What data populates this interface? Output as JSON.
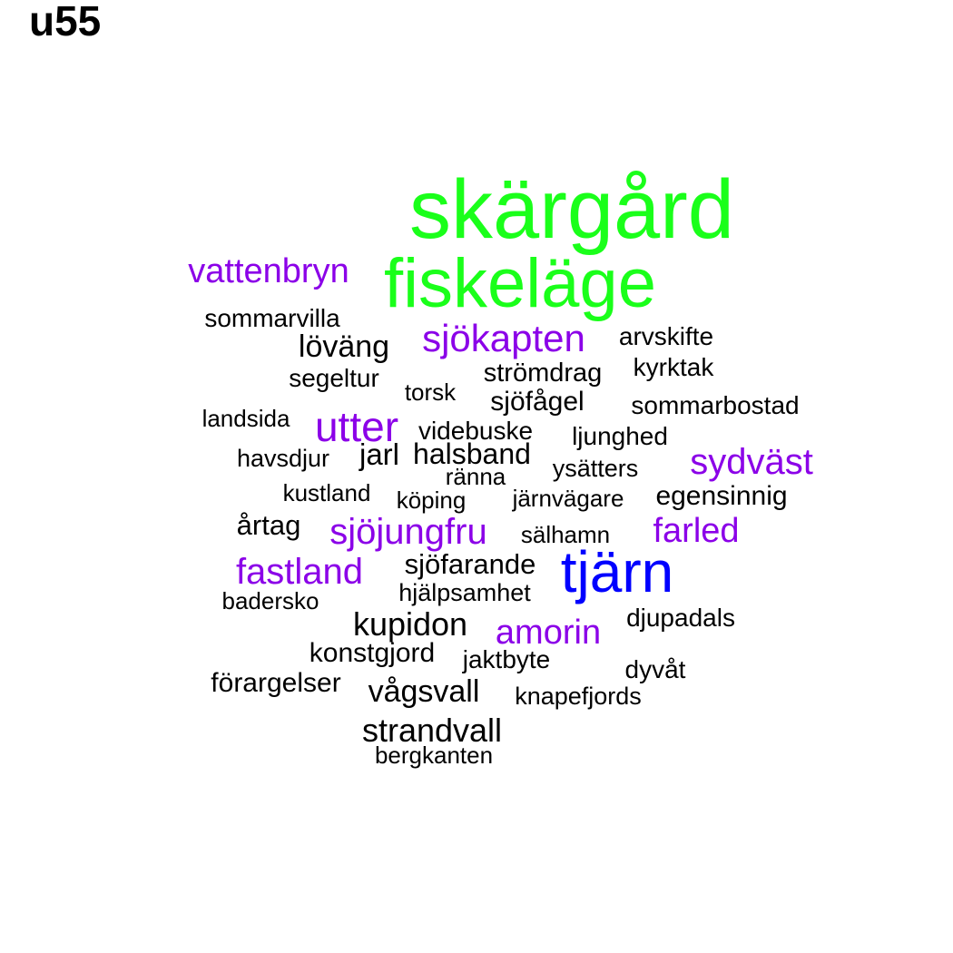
{
  "title": "u55",
  "colors": {
    "green": "#1AFF1A",
    "blue": "#0000FF",
    "purple": "#8B00E8",
    "black": "#000000"
  },
  "words": [
    {
      "text": "skärgård",
      "color": "green"
    },
    {
      "text": "fiskeläge",
      "color": "green"
    },
    {
      "text": "tjärn",
      "color": "blue"
    },
    {
      "text": "vattenbryn",
      "color": "purple"
    },
    {
      "text": "sjökapten",
      "color": "purple"
    },
    {
      "text": "utter",
      "color": "purple"
    },
    {
      "text": "sydväst",
      "color": "purple"
    },
    {
      "text": "sjöjungfru",
      "color": "purple"
    },
    {
      "text": "farled",
      "color": "purple"
    },
    {
      "text": "fastland",
      "color": "purple"
    },
    {
      "text": "amorin",
      "color": "purple"
    },
    {
      "text": "sommarvilla",
      "color": "black"
    },
    {
      "text": "löväng",
      "color": "black"
    },
    {
      "text": "arvskifte",
      "color": "black"
    },
    {
      "text": "strömdrag",
      "color": "black"
    },
    {
      "text": "kyrktak",
      "color": "black"
    },
    {
      "text": "segeltur",
      "color": "black"
    },
    {
      "text": "torsk",
      "color": "black"
    },
    {
      "text": "sjöfågel",
      "color": "black"
    },
    {
      "text": "sommarbostad",
      "color": "black"
    },
    {
      "text": "landsida",
      "color": "black"
    },
    {
      "text": "videbuske",
      "color": "black"
    },
    {
      "text": "ljunghed",
      "color": "black"
    },
    {
      "text": "havsdjur",
      "color": "black"
    },
    {
      "text": "jarl",
      "color": "black"
    },
    {
      "text": "halsband",
      "color": "black"
    },
    {
      "text": "ränna",
      "color": "black"
    },
    {
      "text": "ysätters",
      "color": "black"
    },
    {
      "text": "kustland",
      "color": "black"
    },
    {
      "text": "köping",
      "color": "black"
    },
    {
      "text": "järnvägare",
      "color": "black"
    },
    {
      "text": "egensinnig",
      "color": "black"
    },
    {
      "text": "årtag",
      "color": "black"
    },
    {
      "text": "sälhamn",
      "color": "black"
    },
    {
      "text": "sjöfarande",
      "color": "black"
    },
    {
      "text": "hjälpsamhet",
      "color": "black"
    },
    {
      "text": "badersko",
      "color": "black"
    },
    {
      "text": "kupidon",
      "color": "black"
    },
    {
      "text": "djupadals",
      "color": "black"
    },
    {
      "text": "konstgjord",
      "color": "black"
    },
    {
      "text": "jaktbyte",
      "color": "black"
    },
    {
      "text": "dyvåt",
      "color": "black"
    },
    {
      "text": "förargelser",
      "color": "black"
    },
    {
      "text": "vågsvall",
      "color": "black"
    },
    {
      "text": "knapefjords",
      "color": "black"
    },
    {
      "text": "strandvall",
      "color": "black"
    },
    {
      "text": "bergkanten",
      "color": "black"
    }
  ]
}
